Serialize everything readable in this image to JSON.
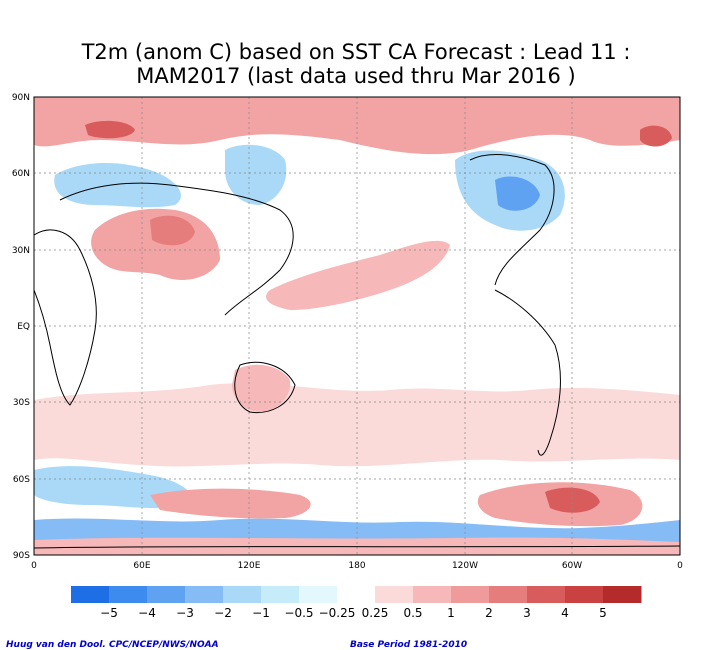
{
  "title_line1": "T2m (anom C) based on SST CA Forecast : Lead 11 :",
  "title_line2": "MAM2017 (last data used thru Mar 2016 )",
  "lat_labels": [
    "90N",
    "60N",
    "30N",
    "EQ",
    "30S",
    "60S",
    "90S"
  ],
  "lon_labels": [
    "0",
    "60E",
    "120E",
    "180",
    "120W",
    "60W",
    "0"
  ],
  "legend": {
    "labels": [
      "−5",
      "−4",
      "−3",
      "−2",
      "−1",
      "−0.5",
      "−0.25",
      "0.25",
      "0.5",
      "1",
      "2",
      "3",
      "4",
      "5"
    ],
    "colors": [
      "#1e6fe6",
      "#3d8bee",
      "#5fa2f2",
      "#86bcf5",
      "#a9d9f7",
      "#c6ecf9",
      "#e3f8fc",
      "#ffffff",
      "#fbdada",
      "#f6b8b8",
      "#f09b9b",
      "#e57d7d",
      "#d85c5c",
      "#c94141",
      "#b52a2a"
    ]
  },
  "credit": "Huug van den Dool. CPC/NCEP/NWS/NOAA",
  "base_period": "Base Period 1981-2010",
  "colors": {
    "warm_light": "#fbdada",
    "warm_mid": "#f2a3a3",
    "warm_strong": "#d85c5c",
    "cold_light": "#c6ecf9",
    "cold_mid": "#8fc6f4",
    "cold_strong": "#5fa2f2"
  }
}
